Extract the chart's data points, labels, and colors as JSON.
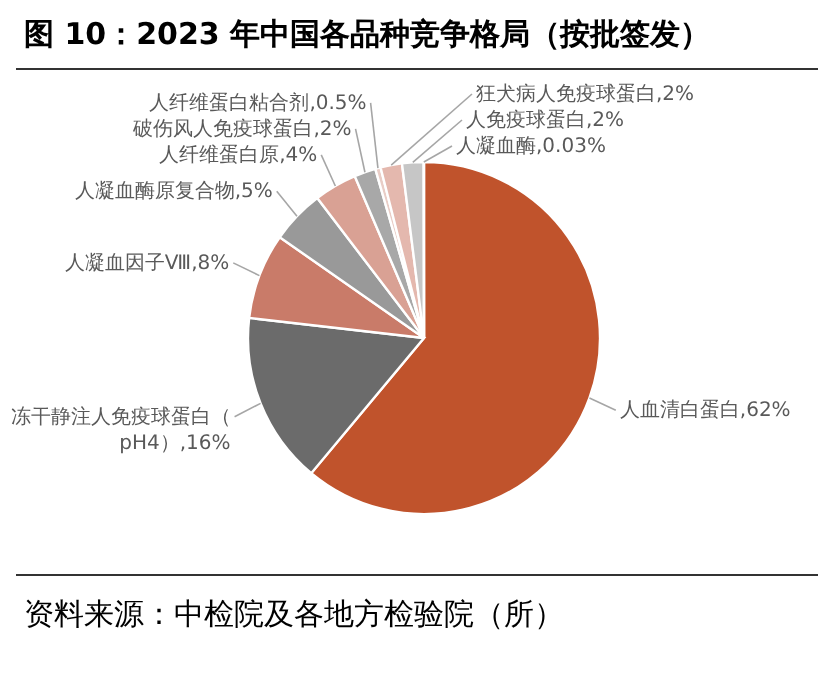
{
  "chart_data": {
    "type": "pie",
    "title": "图 10：2023 年中国各品种竞争格局（按批签发）",
    "categories": [
      "人血清白蛋白",
      "冻干静注人免疫球蛋白（pH4）",
      "人凝血因子Ⅷ",
      "人凝血酶原复合物",
      "人纤维蛋白原",
      "破伤风人免疫球蛋白",
      "人纤维蛋白粘合剂",
      "狂犬病人免疫球蛋白",
      "人免疫球蛋白",
      "人凝血酶"
    ],
    "values": [
      62,
      16,
      8,
      5,
      4,
      2,
      0.5,
      2,
      2,
      0.03
    ],
    "colors": [
      "#c0532c",
      "#6b6b6b",
      "#c97b69",
      "#999999",
      "#d9a194",
      "#a8a8a8",
      "#e9cdc6",
      "#e4b8ae",
      "#c6c6c6",
      "#dadada"
    ],
    "value_labels": [
      ",62%",
      ",16%",
      ",8%",
      ",5%",
      ",4%",
      ",2%",
      ",0.5%",
      ",2%",
      ",2%",
      ",0.03%"
    ],
    "annotations": [
      "资料来源：中检院及各地方检验院（所）"
    ]
  }
}
